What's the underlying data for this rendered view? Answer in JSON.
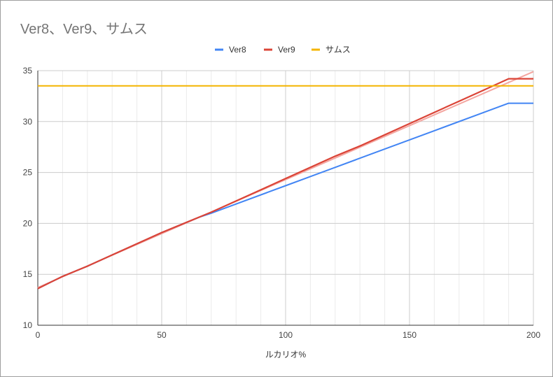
{
  "chart_data": {
    "type": "line",
    "title": "Ver8、Ver9、サムス",
    "xlabel": "ルカリオ%",
    "ylabel": "",
    "xlim": [
      0,
      200
    ],
    "ylim": [
      10,
      35
    ],
    "xticks": [
      0,
      50,
      100,
      150,
      200
    ],
    "yticks": [
      10,
      15,
      20,
      25,
      30,
      35
    ],
    "grid": true,
    "legend": "top-center",
    "series": [
      {
        "name": "Ver8",
        "color": "#4285f4",
        "x": [
          0,
          5,
          10,
          20,
          30,
          40,
          50,
          60,
          65,
          70,
          80,
          100,
          120,
          140,
          160,
          180,
          190,
          200
        ],
        "y": [
          13.6,
          14.2,
          14.8,
          15.8,
          16.9,
          18.0,
          19.1,
          20.1,
          20.6,
          21.0,
          21.9,
          23.7,
          25.5,
          27.3,
          29.1,
          30.9,
          31.8,
          31.8
        ]
      },
      {
        "name": "Ver9",
        "color": "#db4437",
        "x": [
          0,
          5,
          10,
          20,
          30,
          40,
          50,
          60,
          70,
          80,
          90,
          100,
          110,
          120,
          130,
          140,
          150,
          160,
          170,
          180,
          190,
          200
        ],
        "y": [
          13.6,
          14.2,
          14.8,
          15.8,
          16.9,
          18.0,
          19.1,
          20.1,
          21.1,
          22.2,
          23.3,
          24.4,
          25.5,
          26.6,
          27.6,
          28.7,
          29.8,
          30.9,
          32.0,
          33.1,
          34.2,
          34.2
        ]
      },
      {
        "name": "サムス",
        "color": "#f4b400",
        "x": [
          0,
          200
        ],
        "y": [
          33.5,
          33.5
        ]
      }
    ],
    "trendline": {
      "color": "#f4a6a0",
      "x": [
        0,
        200
      ],
      "y": [
        13.7,
        34.9
      ]
    }
  }
}
